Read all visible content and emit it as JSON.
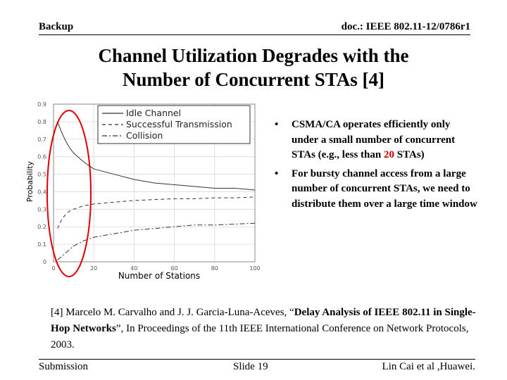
{
  "header": {
    "left": "Backup",
    "right": "doc.: IEEE 802.11-12/0786r1"
  },
  "title_line1": "Channel Utilization Degrades with the",
  "title_line2": "Number of Concurrent STAs [4]",
  "chart_data": {
    "type": "line",
    "xlabel": "Number of Stations",
    "ylabel": "Probability",
    "xlim": [
      0,
      100
    ],
    "ylim": [
      0,
      0.9
    ],
    "x_ticks": [
      "0",
      "20",
      "40",
      "60",
      "80",
      "100"
    ],
    "y_ticks": [
      "0",
      "0.1",
      "0.2",
      "0.3",
      "0.4",
      "0.5",
      "0.6",
      "0.7",
      "0.8",
      "0.9"
    ],
    "legend_position": "top",
    "highlight": {
      "shape": "ellipse",
      "color": "#dd0000"
    },
    "series": [
      {
        "name": "Idle Channel",
        "style": "solid",
        "x": [
          2,
          4,
          6,
          8,
          10,
          15,
          20,
          30,
          40,
          50,
          60,
          70,
          80,
          90,
          100
        ],
        "y": [
          0.8,
          0.74,
          0.69,
          0.65,
          0.62,
          0.57,
          0.53,
          0.5,
          0.47,
          0.45,
          0.44,
          0.43,
          0.42,
          0.42,
          0.41
        ]
      },
      {
        "name": "Successful Transmission",
        "style": "dash",
        "x": [
          2,
          4,
          6,
          8,
          10,
          15,
          20,
          30,
          40,
          50,
          60,
          70,
          80,
          90,
          100
        ],
        "y": [
          0.19,
          0.24,
          0.27,
          0.29,
          0.3,
          0.32,
          0.33,
          0.34,
          0.35,
          0.355,
          0.36,
          0.36,
          0.365,
          0.365,
          0.37
        ]
      },
      {
        "name": "Collision",
        "style": "dashdot",
        "x": [
          2,
          4,
          6,
          8,
          10,
          15,
          20,
          30,
          40,
          50,
          60,
          70,
          80,
          90,
          100
        ],
        "y": [
          0.01,
          0.03,
          0.05,
          0.07,
          0.09,
          0.12,
          0.14,
          0.16,
          0.18,
          0.19,
          0.2,
          0.21,
          0.21,
          0.215,
          0.22
        ]
      }
    ]
  },
  "bullets": [
    {
      "before": "CSMA/CA operates efficiently only under a small number of concurrent STAs  (e.g., less than ",
      "highlight": "20",
      "after": " STAs)"
    },
    {
      "before": "For bursty channel access from a large number of concurrent STAs, we need to distribute them over a large time window",
      "highlight": "",
      "after": ""
    }
  ],
  "bullet_glyph": "•",
  "reference": {
    "part1": "[4] Marcelo M. Carvalho and J. J. Garcia-Luna-Aceves, “",
    "bold": "Delay Analysis of IEEE 802.11 in Single-Hop Networks",
    "part2": "”, In Proceedings of the 11th IEEE International Conference on Network Protocols, 2003."
  },
  "footer": {
    "left": "Submission",
    "center": "Slide 19",
    "right": "Lin Cai et al ,Huawei."
  }
}
